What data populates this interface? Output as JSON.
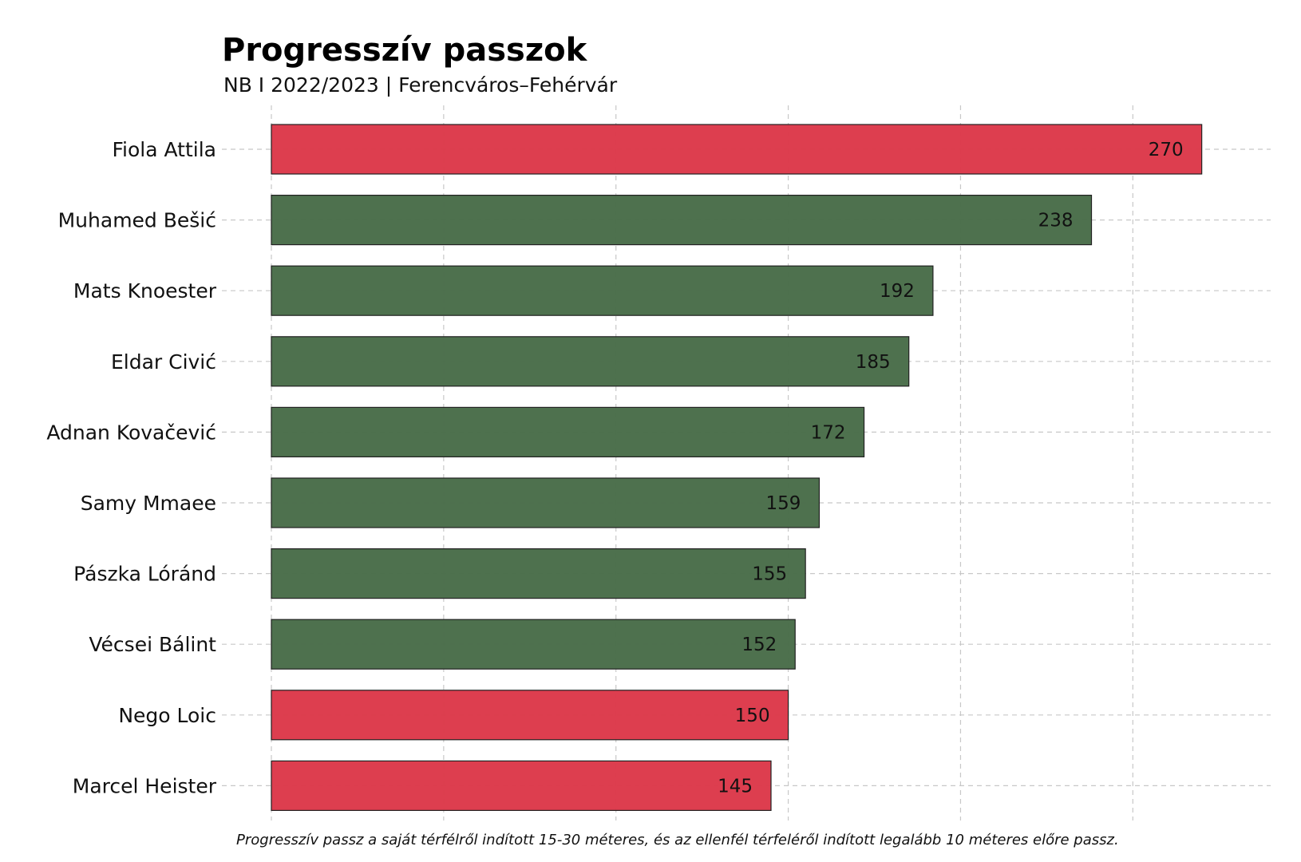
{
  "chart_data": {
    "type": "bar",
    "orientation": "horizontal",
    "title": "Progresszív passzok",
    "subtitle": "NB I 2022/2023 | Ferencváros–Fehérvár",
    "caption": "Progresszív passz a saját térfélről indított 15-30 méteres, és az ellenfél térfeléről indított legalább 10 méteres előre passz.",
    "categories": [
      "Fiola Attila",
      "Muhamed Bešić",
      "Mats Knoester",
      "Eldar Civić",
      "Adnan Kovačević",
      "Samy Mmaee",
      "Pászka Lóránd",
      "Vécsei Bálint",
      "Nego Loic",
      "Marcel Heister"
    ],
    "values": [
      270,
      238,
      192,
      185,
      172,
      159,
      155,
      152,
      150,
      145
    ],
    "value_labels": [
      "270",
      "238",
      "192",
      "185",
      "172",
      "159",
      "155",
      "152",
      "150",
      "145"
    ],
    "bar_teams": [
      "Fehérvár",
      "Ferencváros",
      "Ferencváros",
      "Ferencváros",
      "Ferencváros",
      "Ferencváros",
      "Ferencváros",
      "Ferencváros",
      "Fehérvár",
      "Fehérvár"
    ],
    "colors": {
      "Fehérvár": "#dc3a4b",
      "Ferencváros": "#4a6e4a",
      "bar_border": "#222222",
      "grid": "#c8c8c8"
    },
    "xlim": [
      0,
      290
    ],
    "x_gridlines": [
      0,
      50,
      100,
      150,
      200,
      250
    ],
    "grid": true,
    "legend": "none"
  }
}
